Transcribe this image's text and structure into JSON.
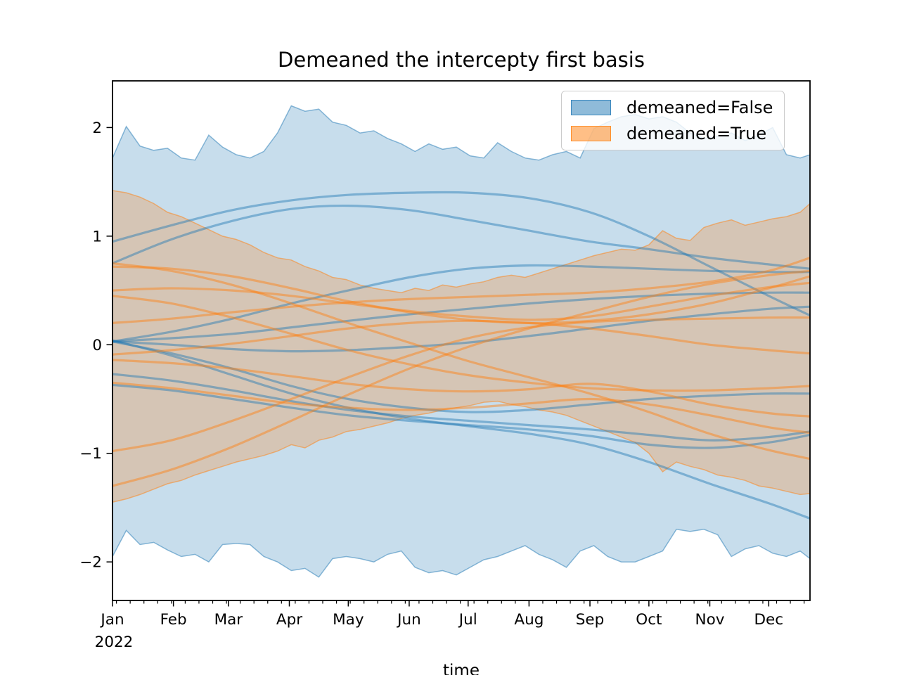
{
  "figure": {
    "title": "Demeaned the intercepty first basis",
    "xlabel": "time"
  },
  "legend": {
    "entries": [
      {
        "label": "demeaned=False",
        "color": "#1f77b4"
      },
      {
        "label": "demeaned=True",
        "color": "#ff7f0e"
      }
    ]
  },
  "chart_data": {
    "type": "line",
    "title": "Demeaned the intercepty first basis",
    "xlabel": "time",
    "ylabel": "",
    "grid": false,
    "legend_position": "upper right",
    "x_axis": {
      "unit": "day-of-year-2022",
      "domain_days": [
        0,
        355
      ],
      "year_label": "2022",
      "month_labels": [
        "Jan",
        "Feb",
        "Mar",
        "Apr",
        "May",
        "Jun",
        "Jul",
        "Aug",
        "Sep",
        "Oct",
        "Nov",
        "Dec"
      ],
      "month_start_days": [
        0,
        31,
        59,
        90,
        120,
        151,
        181,
        212,
        243,
        273,
        304,
        334
      ],
      "minor_ticks": {
        "start_day": 2,
        "step_days": 7
      }
    },
    "y_axis": {
      "ticks": [
        2,
        1,
        0,
        -1,
        -2
      ],
      "tick_labels": [
        "2",
        "1",
        "0",
        "−1",
        "−2"
      ],
      "ylim": [
        -2.355,
        2.43
      ]
    },
    "style": {
      "band_fill_alpha": 0.25,
      "band_edge_alpha": 0.5,
      "band_edge_width": 1.5,
      "line_alpha": 0.45,
      "line_width": 3.2
    },
    "band_days": [
      0,
      7,
      14,
      21,
      28,
      35,
      42,
      49,
      56,
      63,
      70,
      77,
      84,
      91,
      98,
      105,
      112,
      119,
      126,
      133,
      140,
      147,
      154,
      161,
      168,
      175,
      182,
      189,
      196,
      203,
      210,
      217,
      224,
      231,
      238,
      245,
      252,
      259,
      266,
      273,
      280,
      287,
      294,
      301,
      308,
      315,
      322,
      329,
      336,
      343,
      350,
      355
    ],
    "line_days": [
      0,
      30,
      61,
      91,
      120,
      151,
      181,
      212,
      243,
      273,
      304,
      334,
      355
    ],
    "series": [
      {
        "name": "demeaned=False",
        "color": "#1f77b4",
        "band": {
          "upper": [
            1.72,
            2.01,
            1.83,
            1.79,
            1.81,
            1.72,
            1.7,
            1.93,
            1.82,
            1.75,
            1.72,
            1.78,
            1.95,
            2.2,
            2.15,
            2.17,
            2.05,
            2.02,
            1.95,
            1.97,
            1.9,
            1.85,
            1.78,
            1.85,
            1.8,
            1.82,
            1.74,
            1.72,
            1.86,
            1.78,
            1.72,
            1.7,
            1.75,
            1.78,
            1.72,
            1.99,
            2.05,
            2.1,
            2.12,
            2.08,
            2.1,
            2.05,
            1.95,
            1.9,
            1.92,
            1.95,
            1.88,
            1.93,
            2.0,
            1.75,
            1.72,
            1.75
          ],
          "lower": [
            -1.95,
            -1.71,
            -1.84,
            -1.82,
            -1.89,
            -1.95,
            -1.93,
            -2.0,
            -1.84,
            -1.83,
            -1.84,
            -1.95,
            -2.0,
            -2.08,
            -2.06,
            -2.14,
            -1.97,
            -1.95,
            -1.97,
            -2.0,
            -1.93,
            -1.9,
            -2.05,
            -2.1,
            -2.08,
            -2.12,
            -2.05,
            -1.98,
            -1.95,
            -1.9,
            -1.85,
            -1.93,
            -1.98,
            -2.05,
            -1.9,
            -1.85,
            -1.95,
            -2.0,
            -2.0,
            -1.95,
            -1.9,
            -1.7,
            -1.72,
            -1.7,
            -1.75,
            -1.95,
            -1.88,
            -1.85,
            -1.92,
            -1.95,
            -1.9,
            -1.97
          ]
        },
        "lines": [
          [
            0.95,
            1.1,
            1.24,
            1.33,
            1.38,
            1.4,
            1.4,
            1.35,
            1.22,
            1.0,
            0.72,
            0.45,
            0.27
          ],
          [
            0.75,
            0.97,
            1.14,
            1.25,
            1.28,
            1.24,
            1.15,
            1.05,
            0.95,
            0.88,
            0.8,
            0.74,
            0.7
          ],
          [
            0.03,
            0.12,
            0.24,
            0.38,
            0.5,
            0.62,
            0.7,
            0.73,
            0.72,
            0.7,
            0.68,
            0.67,
            0.67
          ],
          [
            0.03,
            0.06,
            0.1,
            0.16,
            0.22,
            0.28,
            0.33,
            0.38,
            0.42,
            0.45,
            0.47,
            0.48,
            0.48
          ],
          [
            0.03,
            0.0,
            -0.04,
            -0.06,
            -0.05,
            -0.02,
            0.02,
            0.08,
            0.15,
            0.22,
            0.28,
            0.33,
            0.35
          ],
          [
            0.03,
            -0.08,
            -0.22,
            -0.38,
            -0.5,
            -0.58,
            -0.62,
            -0.6,
            -0.55,
            -0.5,
            -0.47,
            -0.45,
            -0.45
          ],
          [
            0.04,
            -0.1,
            -0.28,
            -0.45,
            -0.58,
            -0.68,
            -0.75,
            -0.82,
            -0.92,
            -1.08,
            -1.28,
            -1.46,
            -1.6
          ],
          [
            -0.27,
            -0.33,
            -0.42,
            -0.52,
            -0.6,
            -0.66,
            -0.7,
            -0.74,
            -0.78,
            -0.83,
            -0.88,
            -0.85,
            -0.8
          ],
          [
            -0.37,
            -0.42,
            -0.5,
            -0.58,
            -0.65,
            -0.7,
            -0.74,
            -0.78,
            -0.84,
            -0.92,
            -0.95,
            -0.9,
            -0.83
          ]
        ]
      },
      {
        "name": "demeaned=True",
        "color": "#ff7f0e",
        "band": {
          "upper": [
            1.42,
            1.4,
            1.36,
            1.3,
            1.22,
            1.18,
            1.12,
            1.06,
            1.0,
            0.97,
            0.92,
            0.85,
            0.8,
            0.78,
            0.72,
            0.68,
            0.62,
            0.6,
            0.55,
            0.52,
            0.5,
            0.48,
            0.52,
            0.5,
            0.55,
            0.53,
            0.56,
            0.58,
            0.62,
            0.64,
            0.62,
            0.66,
            0.7,
            0.74,
            0.78,
            0.82,
            0.85,
            0.88,
            0.87,
            0.92,
            1.05,
            0.98,
            0.96,
            1.08,
            1.12,
            1.15,
            1.1,
            1.13,
            1.16,
            1.18,
            1.22,
            1.3
          ],
          "lower": [
            -1.45,
            -1.42,
            -1.38,
            -1.33,
            -1.28,
            -1.25,
            -1.2,
            -1.16,
            -1.12,
            -1.08,
            -1.05,
            -1.02,
            -0.98,
            -0.92,
            -0.95,
            -0.88,
            -0.85,
            -0.8,
            -0.78,
            -0.75,
            -0.72,
            -0.68,
            -0.65,
            -0.63,
            -0.6,
            -0.58,
            -0.56,
            -0.53,
            -0.52,
            -0.55,
            -0.57,
            -0.6,
            -0.62,
            -0.65,
            -0.7,
            -0.75,
            -0.8,
            -0.85,
            -0.9,
            -1.0,
            -1.17,
            -1.08,
            -1.12,
            -1.15,
            -1.2,
            -1.22,
            -1.25,
            -1.3,
            -1.32,
            -1.35,
            -1.38,
            -1.37
          ]
        },
        "lines": [
          [
            0.75,
            0.68,
            0.55,
            0.38,
            0.2,
            0.02,
            -0.15,
            -0.3,
            -0.45,
            -0.62,
            -0.82,
            -0.97,
            -1.05
          ],
          [
            0.72,
            0.7,
            0.63,
            0.52,
            0.4,
            0.3,
            0.23,
            0.2,
            0.22,
            0.28,
            0.38,
            0.52,
            0.63
          ],
          [
            0.5,
            0.52,
            0.5,
            0.45,
            0.38,
            0.31,
            0.26,
            0.23,
            0.26,
            0.35,
            0.45,
            0.53,
            0.57
          ],
          [
            0.45,
            0.38,
            0.25,
            0.1,
            -0.05,
            -0.18,
            -0.28,
            -0.35,
            -0.4,
            -0.42,
            -0.42,
            -0.4,
            -0.38
          ],
          [
            0.2,
            0.24,
            0.3,
            0.35,
            0.39,
            0.42,
            0.44,
            0.46,
            0.48,
            0.52,
            0.58,
            0.68,
            0.8
          ],
          [
            -0.09,
            -0.05,
            0.01,
            0.08,
            0.15,
            0.2,
            0.22,
            0.2,
            0.15,
            0.08,
            0.0,
            -0.05,
            -0.08
          ],
          [
            -0.14,
            -0.17,
            -0.22,
            -0.29,
            -0.36,
            -0.41,
            -0.43,
            -0.41,
            -0.36,
            -0.43,
            -0.55,
            -0.63,
            -0.66
          ],
          [
            -0.35,
            -0.4,
            -0.47,
            -0.54,
            -0.58,
            -0.6,
            -0.58,
            -0.54,
            -0.5,
            -0.55,
            -0.65,
            -0.76,
            -0.81
          ],
          [
            -0.98,
            -0.88,
            -0.7,
            -0.5,
            -0.3,
            -0.1,
            0.06,
            0.16,
            0.21,
            0.23,
            0.24,
            0.25,
            0.25
          ],
          [
            -1.3,
            -1.15,
            -0.94,
            -0.7,
            -0.46,
            -0.22,
            -0.02,
            0.15,
            0.3,
            0.44,
            0.56,
            0.64,
            0.68
          ]
        ]
      }
    ]
  }
}
